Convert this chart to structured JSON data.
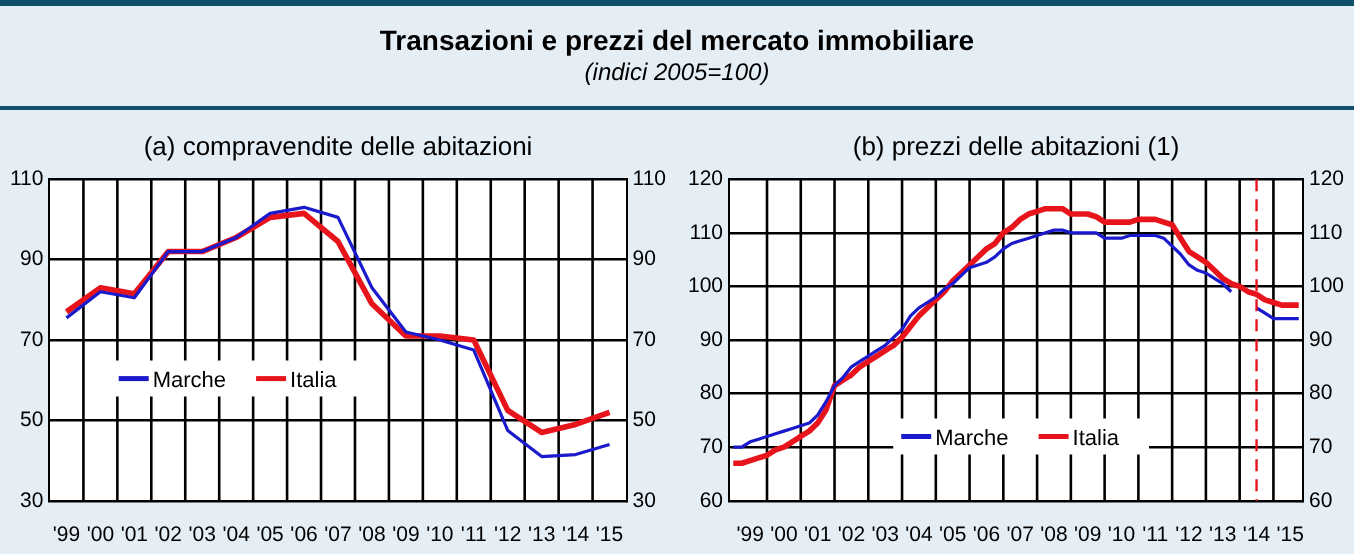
{
  "chart_data": [
    {
      "type": "other",
      "title": "Transazioni e prezzi del mercato immobiliare",
      "subtitle": "(indici  2005=100)"
    },
    {
      "type": "line",
      "title": "(a) compravendite delle abitazioni",
      "categories": [
        "'99",
        "'00",
        "'01",
        "'02",
        "'03",
        "'04",
        "'05",
        "'06",
        "'07",
        "'08",
        "'09",
        "'10",
        "'11",
        "'12",
        "'13",
        "'14",
        "'15"
      ],
      "series": [
        {
          "name": "Marche",
          "color": "#1a1acc",
          "values": [
            75.5,
            82,
            80.5,
            92,
            92,
            95.5,
            101.5,
            103,
            100.5,
            83,
            72,
            70,
            67.5,
            47.5,
            41,
            41.5,
            44
          ]
        },
        {
          "name": "Italia",
          "color": "#e8141c",
          "values": [
            77,
            83,
            81.5,
            92,
            92,
            95.5,
            100.5,
            101.5,
            94.5,
            79,
            71,
            71,
            70,
            52.5,
            47,
            49,
            52
          ]
        }
      ],
      "ylim": [
        30,
        110
      ],
      "yticks": [
        30,
        50,
        70,
        90,
        110
      ],
      "y2lim": [
        30,
        110
      ],
      "y2ticks": [
        30,
        50,
        70,
        90,
        110
      ],
      "grid": true,
      "legend": "center left"
    },
    {
      "type": "line",
      "title": "(b) prezzi delle abitazioni (1)",
      "categories": [
        null,
        null,
        "'99",
        null,
        null,
        null,
        "'00",
        null,
        null,
        null,
        "'01",
        null,
        null,
        null,
        "'02",
        null,
        null,
        null,
        "'03",
        null,
        null,
        null,
        "'04",
        null,
        null,
        null,
        "'05",
        null,
        null,
        null,
        "'06",
        null,
        null,
        null,
        "'07",
        null,
        null,
        null,
        "'08",
        null,
        null,
        null,
        "'09",
        null,
        null,
        null,
        "'10",
        null,
        null,
        null,
        "'11",
        null,
        null,
        null,
        "'12",
        null,
        null,
        null,
        "'13",
        null,
        null,
        null,
        "'14",
        null,
        null,
        null,
        "'15",
        null
      ],
      "series": [
        {
          "name": "Marche",
          "color": "#1a1acc",
          "values": [
            70,
            70,
            71,
            71.5,
            72,
            72.5,
            73,
            73.5,
            74,
            74.5,
            76,
            78.5,
            81.5,
            83,
            85,
            86,
            87,
            88,
            89,
            90.5,
            92,
            94.5,
            96,
            97,
            98,
            99.5,
            100.5,
            102,
            103.5,
            104,
            104.5,
            105.5,
            107,
            108,
            108.5,
            109,
            109.5,
            110,
            110.5,
            110.5,
            110,
            110,
            110,
            110,
            109,
            109,
            109,
            109.5,
            109.5,
            109.5,
            109.5,
            109,
            107.5,
            106,
            104,
            103,
            102.5,
            101.5,
            100.5,
            99,
            null,
            null,
            96,
            95,
            94,
            94,
            94,
            94
          ]
        },
        {
          "name": "Italia",
          "color": "#e8141c",
          "values": [
            67,
            67,
            67.5,
            68,
            68.5,
            69.5,
            70,
            71,
            72,
            73,
            74.5,
            77,
            81.5,
            82.5,
            83.5,
            85,
            86,
            87,
            88,
            89,
            90.5,
            92.5,
            94.5,
            96,
            97.5,
            99,
            101,
            102.5,
            104,
            105.5,
            107,
            108,
            110,
            111,
            112.5,
            113.5,
            114,
            114.5,
            114.5,
            114.5,
            113.5,
            113.5,
            113.5,
            113,
            112,
            112,
            112,
            112,
            112.5,
            112.5,
            112.5,
            112,
            111.5,
            109,
            106.5,
            105.5,
            104.5,
            103,
            101.5,
            100.5,
            100,
            99,
            98.5,
            97.5,
            97,
            96.5,
            96.5,
            96.5
          ]
        }
      ],
      "ylim": [
        60,
        120
      ],
      "yticks": [
        60,
        70,
        80,
        90,
        100,
        110,
        120
      ],
      "y2lim": [
        60,
        120
      ],
      "y2ticks": [
        60,
        70,
        80,
        90,
        100,
        110,
        120
      ],
      "grid": true,
      "legend": "bottom",
      "ref_lines": [
        {
          "axis": "x",
          "value": "'14",
          "color": "#e8141c",
          "line_style": "dashed"
        }
      ]
    }
  ]
}
